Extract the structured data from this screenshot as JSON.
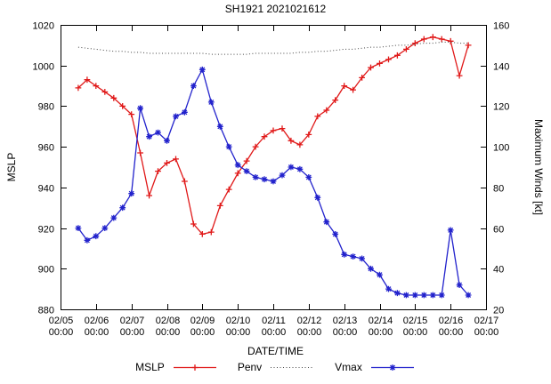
{
  "title": "SH1921 2021021612",
  "chart_data": {
    "type": "line",
    "title": "SH1921 2021021612",
    "xlabel": "DATE/TIME",
    "ylabel_left": "MSLP",
    "ylabel_right": "Maximum Winds [kt]",
    "x_range": [
      0,
      12
    ],
    "x_note": "x values are days since 02/05 00:00, points every 6 hours",
    "ylim_left": [
      880,
      1020
    ],
    "ylim_right": [
      20,
      160
    ],
    "grid": false,
    "legend_position": "bottom-center",
    "x_tick_dates": [
      "02/05",
      "02/06",
      "02/07",
      "02/08",
      "02/09",
      "02/10",
      "02/11",
      "02/12",
      "02/13",
      "02/14",
      "02/15",
      "02/16",
      "02/17"
    ],
    "x_tick_time_label": "00:00",
    "y_ticks_left": [
      880,
      900,
      920,
      940,
      960,
      980,
      1000,
      1020
    ],
    "y_ticks_right": [
      20,
      40,
      60,
      80,
      100,
      120,
      140,
      160
    ],
    "x": [
      0.5,
      0.75,
      1,
      1.25,
      1.5,
      1.75,
      2,
      2.25,
      2.5,
      2.75,
      3,
      3.25,
      3.5,
      3.75,
      4,
      4.25,
      4.5,
      4.75,
      5,
      5.25,
      5.5,
      5.75,
      6,
      6.25,
      6.5,
      6.75,
      7,
      7.25,
      7.5,
      7.75,
      8,
      8.25,
      8.5,
      8.75,
      9,
      9.25,
      9.5,
      9.75,
      10,
      10.25,
      10.5,
      10.75,
      11,
      11.25,
      11.5
    ],
    "series": [
      {
        "name": "MSLP",
        "axis": "left",
        "color": "#e01818",
        "marker": "plus",
        "line": "solid",
        "values": [
          989,
          993,
          990,
          987,
          984,
          980,
          976,
          957,
          936,
          948,
          952,
          954,
          943,
          922,
          917,
          918,
          931,
          939,
          947,
          953,
          960,
          965,
          968,
          969,
          963,
          961,
          966,
          975,
          978,
          983,
          990,
          988,
          994,
          999,
          1001,
          1003,
          1005,
          1008,
          1011,
          1013,
          1014,
          1013,
          1012,
          995,
          1010
        ]
      },
      {
        "name": "Penv",
        "axis": "left",
        "color": "#444444",
        "marker": "none",
        "line": "dotted",
        "values": [
          1009,
          1008.5,
          1008,
          1007.5,
          1007,
          1007,
          1006.5,
          1006.5,
          1006,
          1006,
          1006,
          1006,
          1006,
          1006,
          1006,
          1005.5,
          1005.5,
          1005.5,
          1005.5,
          1005.5,
          1006,
          1006,
          1006,
          1006,
          1006,
          1006.5,
          1006.5,
          1007,
          1007,
          1007.5,
          1008,
          1008,
          1008.5,
          1009,
          1009,
          1009.5,
          1010,
          1010,
          1010.5,
          1011,
          1011,
          1011.5,
          1011.5,
          1011,
          1011
        ]
      },
      {
        "name": "Vmax",
        "axis": "right",
        "color": "#2222cc",
        "marker": "star",
        "line": "solid",
        "values": [
          60,
          54,
          56,
          60,
          65,
          70,
          77,
          119,
          105,
          107,
          103,
          115,
          117,
          130,
          138,
          122,
          110,
          100,
          91,
          88,
          85,
          84,
          83,
          86,
          90,
          89,
          85,
          75,
          63,
          57,
          47,
          46,
          45,
          40,
          37,
          30,
          28,
          27,
          27,
          27,
          27,
          27,
          59,
          32,
          27
        ]
      }
    ]
  }
}
